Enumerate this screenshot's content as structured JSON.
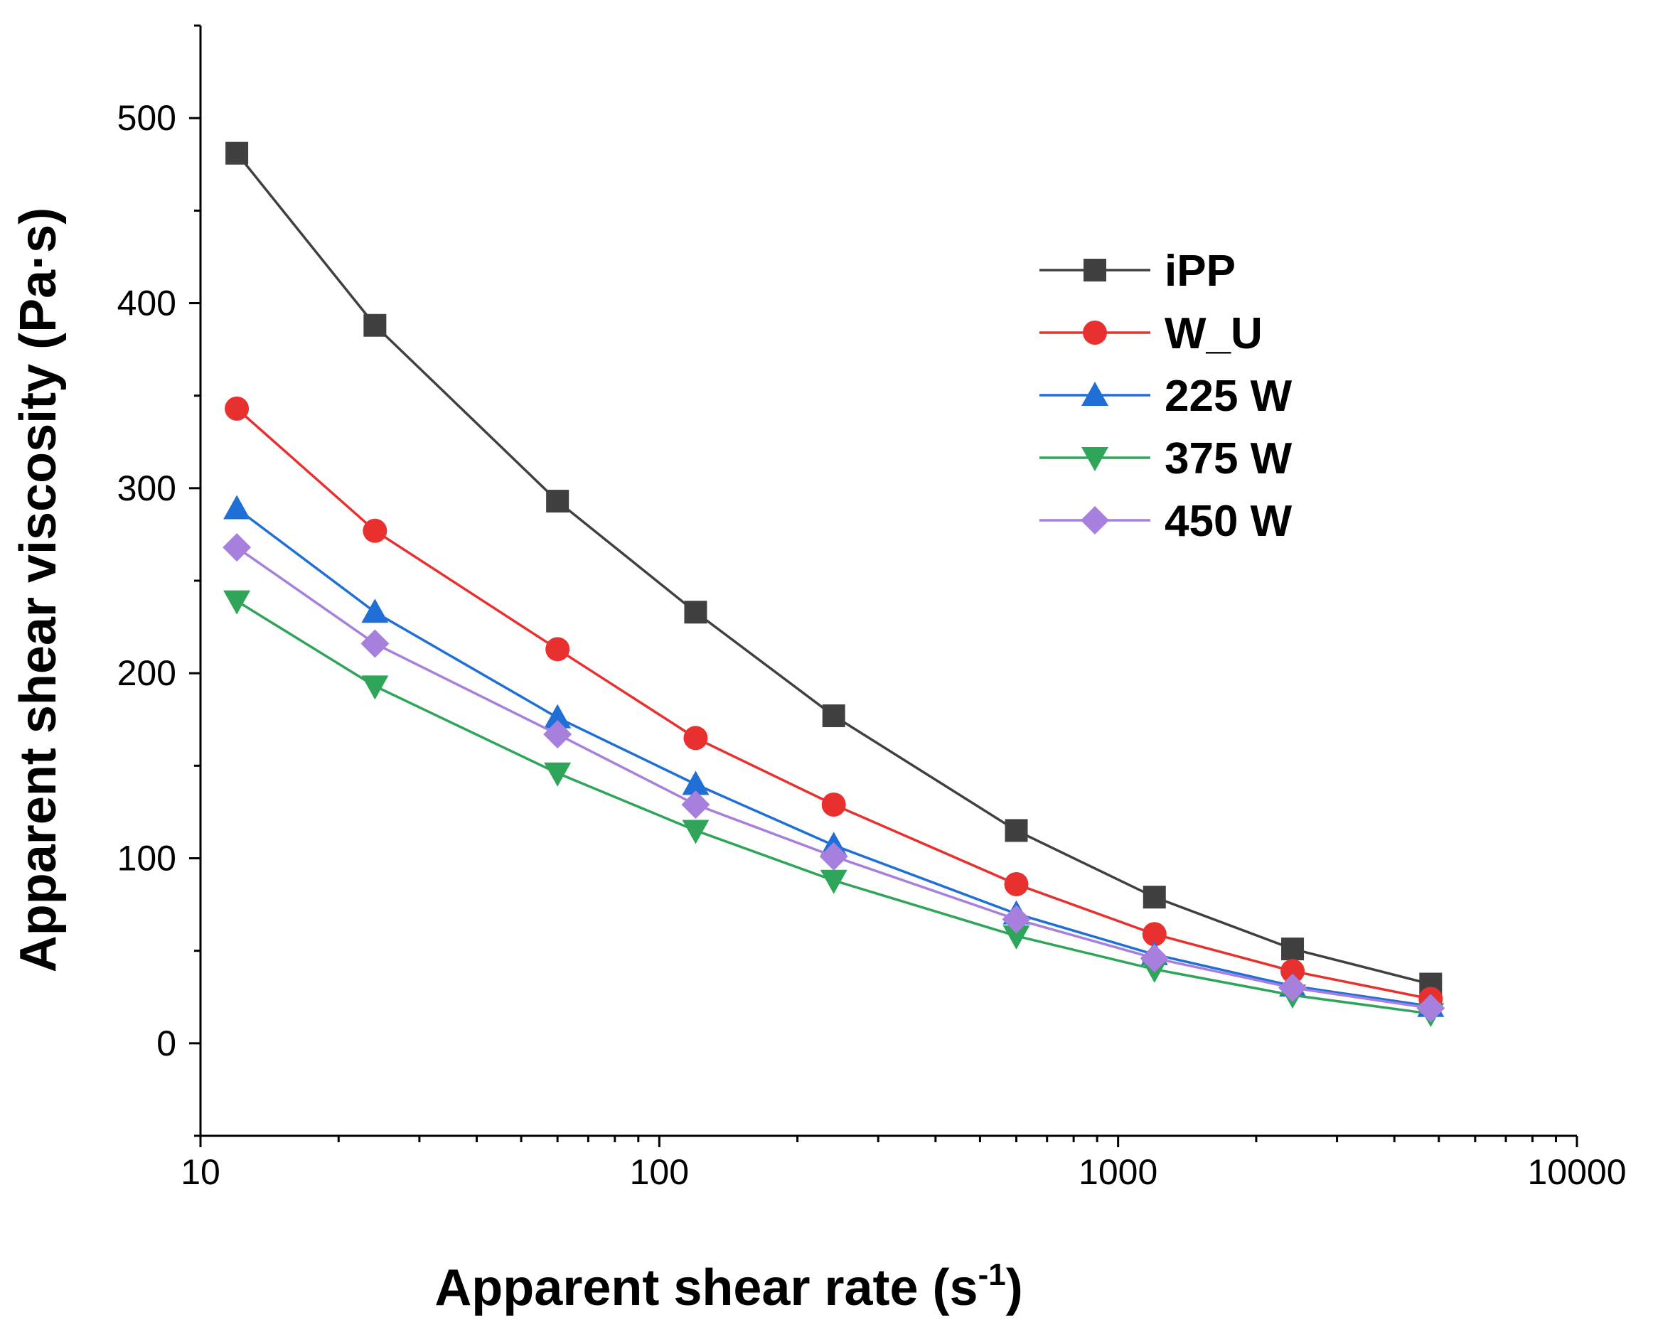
{
  "chart_data": {
    "type": "line",
    "xlabel": "Apparent shear rate (s",
    "xlabel_sup": "-1",
    "xlabel_end": ")",
    "ylabel": "Apparent shear viscosity (Pa·s)",
    "x_scale": "log",
    "xlim": [
      10,
      10000
    ],
    "ylim": [
      -50,
      550
    ],
    "x_ticks": [
      10,
      100,
      1000,
      10000
    ],
    "x_tick_labels": [
      "10",
      "100",
      "1000",
      "10000"
    ],
    "y_ticks": [
      0,
      100,
      200,
      300,
      400,
      500
    ],
    "y_tick_labels": [
      "0",
      "100",
      "200",
      "300",
      "400",
      "500"
    ],
    "grid": false,
    "legend_position": "top-right",
    "x": [
      12,
      24,
      60,
      120,
      240,
      600,
      1200,
      2400,
      4800
    ],
    "series": [
      {
        "name": "iPP",
        "color": "#404040",
        "marker": "square",
        "values": [
          481,
          388,
          293,
          233,
          177,
          115,
          79,
          51,
          32
        ]
      },
      {
        "name": "W_U",
        "color": "#e8312f",
        "marker": "circle",
        "values": [
          343,
          277,
          213,
          165,
          129,
          86,
          59,
          39,
          24
        ]
      },
      {
        "name": "225 W",
        "color": "#1f6fd6",
        "marker": "triangle-up",
        "values": [
          289,
          233,
          176,
          140,
          107,
          70,
          48,
          31,
          20
        ]
      },
      {
        "name": "375 W",
        "color": "#2fa55a",
        "marker": "triangle-down",
        "values": [
          239,
          193,
          146,
          115,
          88,
          58,
          40,
          26,
          16
        ]
      },
      {
        "name": "450 W",
        "color": "#a77fdc",
        "marker": "diamond",
        "values": [
          268,
          216,
          167,
          129,
          101,
          67,
          46,
          30,
          19
        ]
      }
    ]
  }
}
